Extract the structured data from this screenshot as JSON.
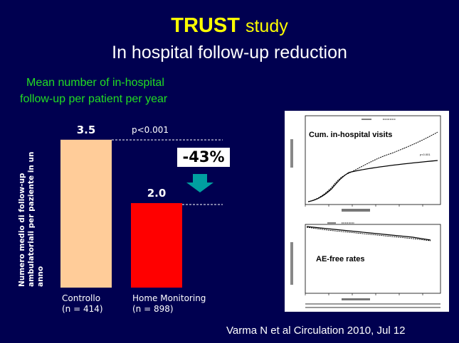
{
  "title": {
    "bold": "TRUST",
    "rest": "study",
    "line2": "In hospital follow-up reduction"
  },
  "subtitle": {
    "line1": "Mean number of in-hospital",
    "line2": "follow-up per patient per year"
  },
  "chart_data": {
    "type": "bar",
    "categories": [
      {
        "line1": "Controllo",
        "line2": "(n = 414)"
      },
      {
        "line1": "Home Monitoring",
        "line2": "(n = 898)"
      }
    ],
    "values": [
      3.5,
      2.0
    ],
    "value_labels": [
      "3.5",
      "2.0"
    ],
    "colors": [
      "#ffcc99",
      "#ff0000"
    ],
    "ylabel": {
      "line1": "Numero medio di follow-up",
      "line2": "ambulatoriali per paziente in un",
      "line3": "anno"
    },
    "ylim": [
      0,
      4
    ],
    "pvalue": "p<0.001",
    "reduction": "-43%",
    "arrow_color": "#00a0a0"
  },
  "inset": {
    "label_top": "Cum. in-hospital visits",
    "label_bottom": "AE-free rates"
  },
  "citation": "Varma N et al Circulation 2010, Jul 12"
}
